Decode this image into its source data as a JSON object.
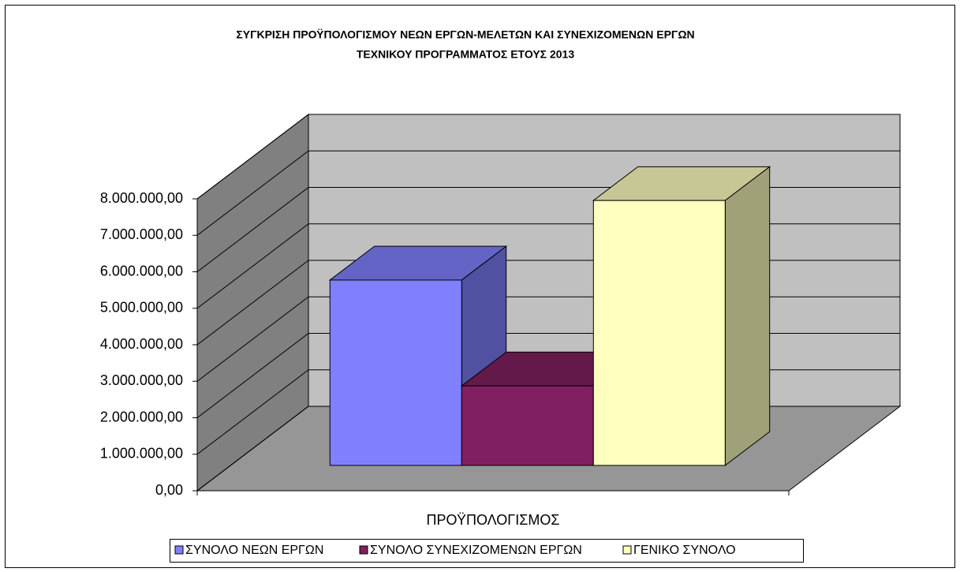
{
  "chart_data": {
    "type": "bar3d",
    "title": "ΣΥΓΚΡΙΣΗ ΠΡΟΫΠΟΛΟΓΙΣΜΟΥ ΝΕΩΝ ΕΡΓΩΝ-ΜΕΛΕΤΩΝ ΚΑΙ ΣΥΝΕΧΙΖΟΜΕΝΩΝ ΕΡΓΩΝ",
    "subtitle": "ΤΕΧΝΙΚΟΥ ΠΡΟΓΡΑΜΜΑΤΟΣ ΕΤΟΥΣ 2013",
    "categories": [
      "ΠΡΟΫΠΟΛΟΓΙΣΜΟΣ"
    ],
    "series": [
      {
        "name": "ΣΥΝΟΛΟ ΝΕΩΝ ΕΡΓΩΝ",
        "color": "#8080ff",
        "values": [
          5080000
        ]
      },
      {
        "name": "ΣΥΝΟΛΟ ΣΥΝΕΧΙΖΟΜΕΝΩΝ ΕΡΓΩΝ",
        "color": "#802060",
        "values": [
          2180000
        ]
      },
      {
        "name": "ΓΕΝΙΚΟ ΣΥΝΟΛΟ",
        "color": "#ffffc0",
        "values": [
          7260000
        ]
      }
    ],
    "ylim": [
      0,
      8000000
    ],
    "yticks": [
      {
        "value": 0,
        "label": "0,00"
      },
      {
        "value": 1000000,
        "label": "1.000.000,00"
      },
      {
        "value": 2000000,
        "label": "2.000.000,00"
      },
      {
        "value": 3000000,
        "label": "3.000.000,00"
      },
      {
        "value": 4000000,
        "label": "4.000.000,00"
      },
      {
        "value": 5000000,
        "label": "5.000.000,00"
      },
      {
        "value": 6000000,
        "label": "6.000.000,00"
      },
      {
        "value": 7000000,
        "label": "7.000.000,00"
      },
      {
        "value": 8000000,
        "label": "8.000.000,00"
      }
    ],
    "grid": true,
    "legend": "bottom"
  }
}
